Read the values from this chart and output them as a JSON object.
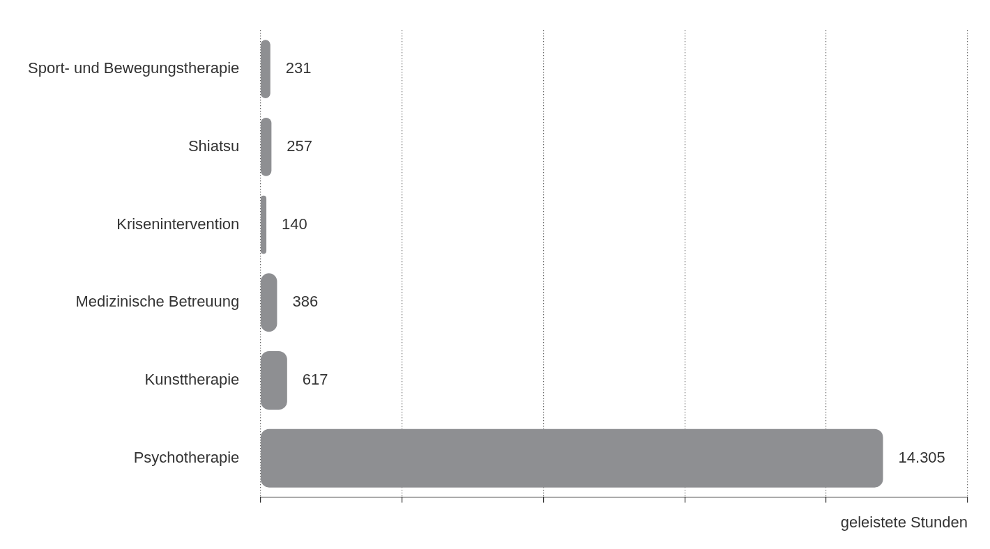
{
  "chart_data": {
    "type": "bar",
    "orientation": "horizontal",
    "xlabel": "geleistete Stunden",
    "categories": [
      "Sport- und Bewegungstherapie",
      "Shiatsu",
      "Krisenintervention",
      "Medizinische Betreuung",
      "Kunsttherapie",
      "Psychotherapie"
    ],
    "values": [
      231,
      257,
      140,
      386,
      617,
      14305
    ],
    "value_labels": [
      "231",
      "257",
      "140",
      "386",
      "617",
      "14.305"
    ],
    "color": "#8e8f92",
    "xlim": [
      0,
      16250
    ],
    "xticks": [
      {
        "value": 0,
        "label": null
      },
      {
        "value": 3250,
        "label": null
      },
      {
        "value": 6500,
        "label": null
      },
      {
        "value": 9750,
        "label": null
      },
      {
        "value": 13000,
        "label": null
      },
      {
        "value": 16250,
        "label": null
      }
    ],
    "grid": "x",
    "tick_labels": "y",
    "legend": false
  }
}
